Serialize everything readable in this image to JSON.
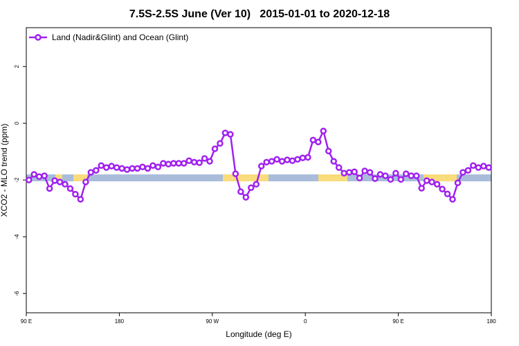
{
  "chart_data": {
    "type": "line",
    "title": "7.5S-2.5S June (Ver 10)   2015-01-01 to 2020-12-18",
    "x_label": "Longitude (deg E)",
    "y_label": "XCO2 - MLO trend (ppm)",
    "xlim": [
      90,
      540
    ],
    "ylim": [
      -6.68,
      3.37
    ],
    "xticks": [
      {
        "value": 90,
        "label": "90 E"
      },
      180,
      {
        "value": 270,
        "label": "90 W"
      },
      {
        "value": 360,
        "label": "0"
      },
      {
        "value": 450,
        "label": "90 E"
      },
      {
        "value": 540,
        "label": "180"
      }
    ],
    "yticks": [
      -6,
      -4,
      -2,
      0,
      2
    ],
    "legend": "top-left",
    "x": [
      92.5,
      97.5,
      102.5,
      107.5,
      112.5,
      117.5,
      122.5,
      127.5,
      132.5,
      137.5,
      142.5,
      147.5,
      152.5,
      157.5,
      162.5,
      167.5,
      172.5,
      177.5,
      182.5,
      187.5,
      192.5,
      197.5,
      202.5,
      207.5,
      212.5,
      217.5,
      222.5,
      227.5,
      232.5,
      237.5,
      242.5,
      247.5,
      252.5,
      257.5,
      262.5,
      267.5,
      272.5,
      277.5,
      282.5,
      287.5,
      292.5,
      297.5,
      302.5,
      307.5,
      312.5,
      317.5,
      322.5,
      327.5,
      332.5,
      337.5,
      342.5,
      347.5,
      352.5,
      357.5,
      362.5,
      367.5,
      372.5,
      377.5,
      382.5,
      387.5,
      392.5,
      397.5,
      402.5,
      407.5,
      412.5,
      417.5,
      422.5,
      427.5,
      432.5,
      437.5,
      442.5,
      447.5,
      452.5,
      457.5,
      462.5,
      467.5,
      472.5,
      477.5,
      482.5,
      487.5,
      492.5,
      497.5,
      502.5,
      507.5,
      512.5,
      517.5,
      522.5,
      527.5,
      532.5,
      537.5
    ],
    "series": [
      {
        "name": "Land (Nadir&Glint) and Ocean (Glint)",
        "color": "#a020f0",
        "values": [
          -2.0,
          -1.8,
          -1.88,
          -1.85,
          -2.3,
          -2.02,
          -2.07,
          -2.15,
          -2.3,
          -2.5,
          -2.68,
          -2.07,
          -1.73,
          -1.66,
          -1.49,
          -1.56,
          -1.51,
          -1.56,
          -1.59,
          -1.63,
          -1.59,
          -1.59,
          -1.54,
          -1.59,
          -1.49,
          -1.54,
          -1.41,
          -1.44,
          -1.41,
          -1.41,
          -1.41,
          -1.32,
          -1.37,
          -1.39,
          -1.24,
          -1.34,
          -0.9,
          -0.71,
          -0.34,
          -0.39,
          -1.78,
          -2.41,
          -2.61,
          -2.27,
          -2.15,
          -1.51,
          -1.37,
          -1.34,
          -1.27,
          -1.34,
          -1.29,
          -1.32,
          -1.27,
          -1.22,
          -1.2,
          -0.59,
          -0.66,
          -0.27,
          -0.98,
          -1.34,
          -1.56,
          -1.76,
          -1.73,
          -1.71,
          -1.93,
          -1.68,
          -1.73,
          -1.95,
          -1.8,
          -1.85,
          -1.98,
          -1.76,
          -1.98,
          -1.78,
          -1.85,
          -1.85,
          -2.29,
          -2.02,
          -2.07,
          -2.15,
          -2.32,
          -2.49,
          -2.68,
          -2.1,
          -1.73,
          -1.66,
          -1.49,
          -1.56,
          -1.51,
          -1.56
        ]
      }
    ]
  }
}
